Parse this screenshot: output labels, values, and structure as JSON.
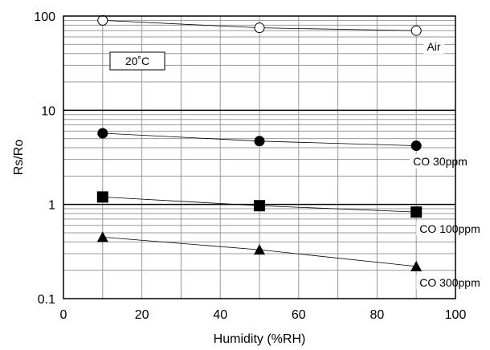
{
  "chart_data": {
    "type": "scatter",
    "title": "",
    "xlabel": "Humidity (%RH)",
    "ylabel": "Rs/Ro",
    "xlim": [
      0,
      100
    ],
    "ylim": [
      0.1,
      100
    ],
    "y_scale": "log",
    "grid": true,
    "x_ticks": [
      "0",
      "20",
      "40",
      "60",
      "80",
      "100"
    ],
    "y_ticks": [
      "0.1",
      "1",
      "10",
      "100"
    ],
    "annotation": "20˚C",
    "series": [
      {
        "name": "Air",
        "marker": "open-circle",
        "x": [
          10,
          50,
          90
        ],
        "y": [
          90,
          75,
          70
        ]
      },
      {
        "name": "CO 30ppm",
        "marker": "filled-circle",
        "x": [
          10,
          50,
          90
        ],
        "y": [
          5.7,
          4.7,
          4.2
        ]
      },
      {
        "name": "CO 100ppm",
        "marker": "filled-square",
        "x": [
          10,
          50,
          90
        ],
        "y": [
          1.2,
          0.97,
          0.83
        ]
      },
      {
        "name": "CO 300ppm",
        "marker": "filled-triangle",
        "x": [
          10,
          50,
          90
        ],
        "y": [
          0.45,
          0.33,
          0.22
        ]
      }
    ]
  }
}
